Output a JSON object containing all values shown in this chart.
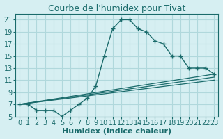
{
  "title": "Courbe de l'humidex pour Tivat",
  "xlabel": "Humidex (Indice chaleur)",
  "background_color": "#d6eff2",
  "grid_color": "#b0d8dc",
  "line_color": "#1a6b6b",
  "x_ticks": [
    0,
    1,
    2,
    3,
    4,
    5,
    6,
    7,
    8,
    9,
    10,
    11,
    12,
    13,
    14,
    15,
    16,
    17,
    18,
    19,
    20,
    21,
    22,
    23
  ],
  "y_ticks": [
    5,
    7,
    9,
    11,
    13,
    15,
    17,
    19,
    21
  ],
  "xlim": [
    -0.5,
    23.5
  ],
  "ylim": [
    5,
    22
  ],
  "main_series_x": [
    0,
    1,
    2,
    3,
    4,
    5,
    6,
    7,
    8,
    9,
    10,
    11,
    12,
    13,
    14,
    15,
    16,
    17,
    18,
    19,
    20,
    21,
    22,
    23
  ],
  "main_series_y": [
    7,
    7,
    6,
    6,
    6,
    5,
    6,
    7,
    8,
    10,
    15,
    19.5,
    21,
    21,
    19.5,
    19,
    17.5,
    17,
    15,
    15,
    13,
    13,
    13,
    12
  ],
  "line2_x": [
    0,
    23
  ],
  "line2_y": [
    7,
    12
  ],
  "line3_x": [
    0,
    23
  ],
  "line3_y": [
    7,
    11.5
  ],
  "line4_x": [
    0,
    23
  ],
  "line4_y": [
    7,
    11
  ],
  "title_fontsize": 9,
  "tick_fontsize": 7,
  "label_fontsize": 8
}
